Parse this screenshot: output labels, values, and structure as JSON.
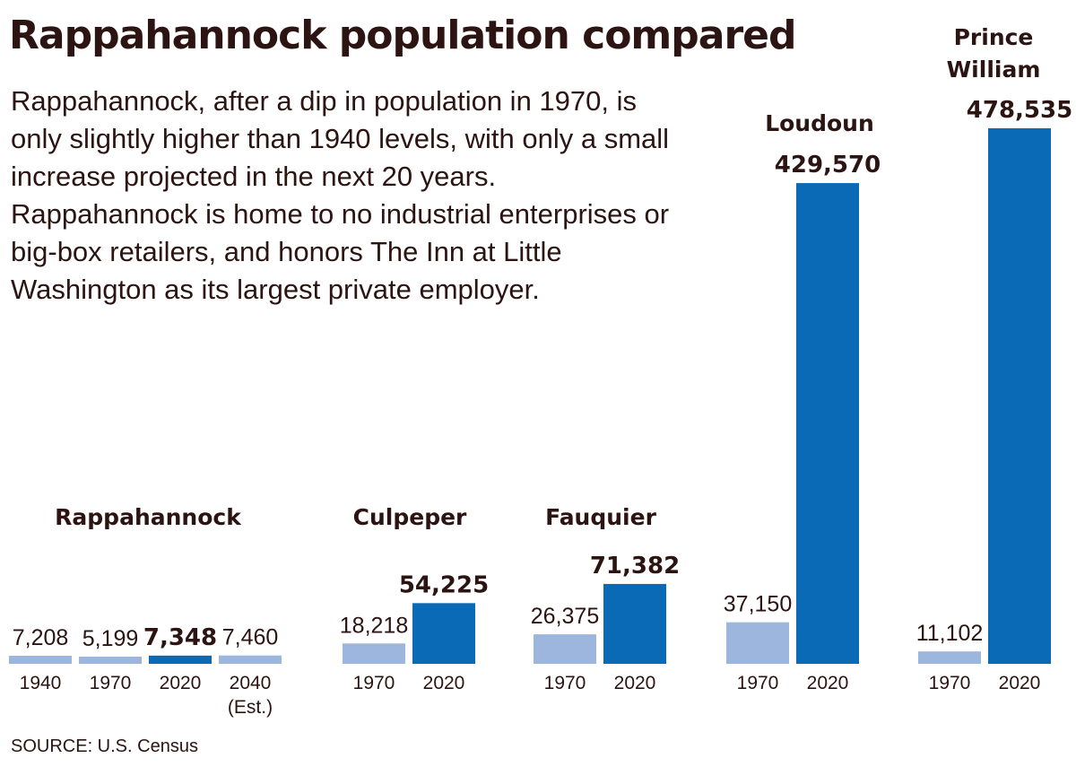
{
  "title": "Rappahannock population compared",
  "intro": "Rappahannock, after a dip in population in 1970, is only slightly higher than 1940 levels, with only a small increase projected in the next 20 years. Rappahannock is home to no industrial enterprises or big-box retailers, and honors The Inn at Little Washington as its largest private employer.",
  "source": "SOURCE: U.S. Census",
  "colors": {
    "light_bar": "#9db6dd",
    "dark_bar": "#0a6ab5",
    "text": "#2b1411"
  },
  "chart_data": {
    "type": "bar",
    "groups": [
      {
        "name": "Rappahannock",
        "bars": [
          {
            "year": "1940",
            "value": 7208,
            "label": "7,208",
            "highlight": false
          },
          {
            "year": "1970",
            "value": 5199,
            "label": "5,199",
            "highlight": false
          },
          {
            "year": "2020",
            "value": 7348,
            "label": "7,348",
            "highlight": true
          },
          {
            "year": "2040",
            "year_note": "(Est.)",
            "value": 7460,
            "label": "7,460",
            "highlight": false
          }
        ]
      },
      {
        "name": "Culpeper",
        "bars": [
          {
            "year": "1970",
            "value": 18218,
            "label": "18,218",
            "highlight": false
          },
          {
            "year": "2020",
            "value": 54225,
            "label": "54,225",
            "highlight": true
          }
        ]
      },
      {
        "name": "Fauquier",
        "bars": [
          {
            "year": "1970",
            "value": 26375,
            "label": "26,375",
            "highlight": false
          },
          {
            "year": "2020",
            "value": 71382,
            "label": "71,382",
            "highlight": true
          }
        ]
      },
      {
        "name": "Loudoun",
        "bars": [
          {
            "year": "1970",
            "value": 37150,
            "label": "37,150",
            "highlight": false
          },
          {
            "year": "2020",
            "value": 429570,
            "label": "429,570",
            "highlight": true
          }
        ]
      },
      {
        "name": "Prince William",
        "bars": [
          {
            "year": "1970",
            "value": 11102,
            "label": "11,102",
            "highlight": false
          },
          {
            "year": "2020",
            "value": 478535,
            "label": "478,535",
            "highlight": true
          }
        ]
      }
    ]
  }
}
